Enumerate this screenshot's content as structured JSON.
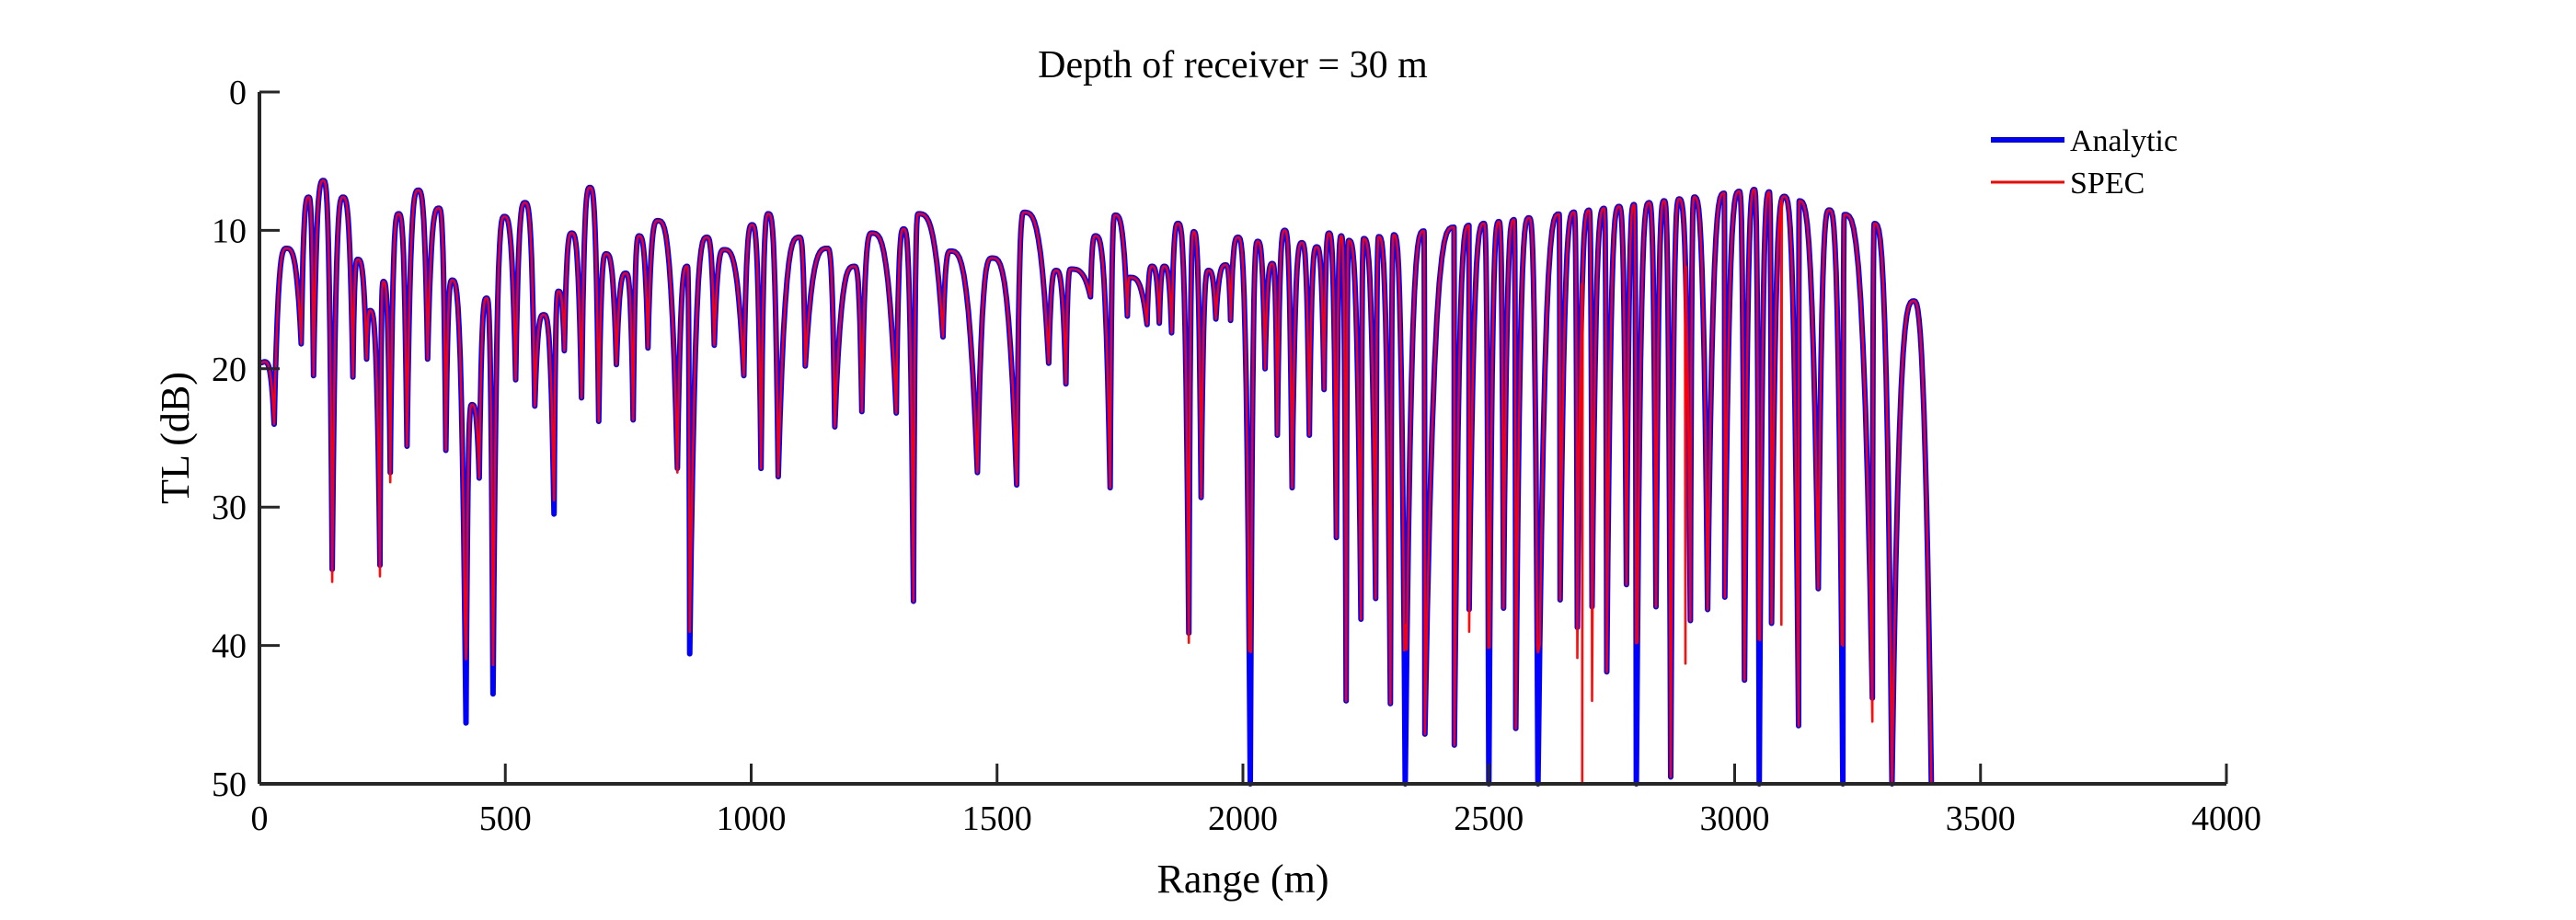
{
  "chart_data": {
    "type": "line",
    "title": "Depth of receiver = 30 m",
    "xlabel": "Range (m)",
    "ylabel": "TL (dB)",
    "xlim": [
      0,
      4000
    ],
    "ylim": [
      0,
      50
    ],
    "y_reversed": true,
    "grid": false,
    "legend_position": "top-right",
    "x_ticks": [
      "0",
      "500",
      "1000",
      "1500",
      "2000",
      "2500",
      "3000",
      "3500",
      "4000"
    ],
    "y_ticks": [
      "0",
      "10",
      "20",
      "30",
      "40",
      "50"
    ],
    "cutoff_range": 3400,
    "series": [
      {
        "name": "Analytic",
        "color": "#0000ff",
        "peaks": [
          [
            10,
            19.5
          ],
          [
            55,
            11.3
          ],
          [
            100,
            7.6
          ],
          [
            130,
            6.4
          ],
          [
            170,
            7.6
          ],
          [
            200,
            12.1
          ],
          [
            225,
            15.8
          ],
          [
            252,
            13.7
          ],
          [
            283,
            8.8
          ],
          [
            323,
            7.1
          ],
          [
            365,
            8.4
          ],
          [
            392,
            13.6
          ],
          [
            432,
            22.6
          ],
          [
            462,
            14.9
          ],
          [
            498,
            9.0
          ],
          [
            540,
            8.0
          ],
          [
            578,
            16.1
          ],
          [
            608,
            14.4
          ],
          [
            635,
            10.2
          ],
          [
            672,
            6.9
          ],
          [
            705,
            11.7
          ],
          [
            745,
            13.1
          ],
          [
            772,
            10.4
          ],
          [
            810,
            9.3
          ],
          [
            840,
            16.1
          ],
          [
            870,
            12.6
          ],
          [
            910,
            10.5
          ],
          [
            945,
            11.4
          ],
          [
            965,
            12.1
          ],
          [
            1002,
            9.6
          ],
          [
            1035,
            8.8
          ],
          [
            1065,
            10.6
          ],
          [
            1098,
            10.5
          ],
          [
            1130,
            13.7
          ],
          [
            1155,
            11.3
          ],
          [
            1185,
            15.9
          ],
          [
            1210,
            12.6
          ],
          [
            1245,
            10.2
          ],
          [
            1280,
            12.3
          ],
          [
            1310,
            9.9
          ],
          [
            1340,
            8.8
          ],
          [
            1370,
            12.0
          ],
          [
            1405,
            11.5
          ],
          [
            1430,
            12.8
          ],
          [
            1455,
            15.7
          ],
          [
            1490,
            12.0
          ],
          [
            1525,
            13.0
          ],
          [
            1555,
            8.7
          ],
          [
            1590,
            10.9
          ],
          [
            1620,
            12.9
          ],
          [
            1650,
            12.8
          ],
          [
            1680,
            14.5
          ],
          [
            1700,
            10.4
          ],
          [
            1740,
            8.9
          ],
          [
            1770,
            13.4
          ],
          [
            1795,
            14.1
          ],
          [
            1815,
            12.6
          ],
          [
            1840,
            12.6
          ],
          [
            1868,
            9.5
          ],
          [
            1900,
            10.1
          ],
          [
            1930,
            12.9
          ],
          [
            1965,
            12.5
          ],
          [
            1990,
            10.5
          ],
          [
            2030,
            10.8
          ],
          [
            2060,
            12.4
          ],
          [
            2085,
            10.0
          ],
          [
            2120,
            10.9
          ],
          [
            2150,
            11.2
          ],
          [
            2175,
            10.2
          ],
          [
            2200,
            10.4
          ]
        ],
        "uniform_arches": {
          "start": 2200,
          "end": 3330,
          "count": 37,
          "peak_from": 10.8,
          "peak_mid_range": 3050,
          "peak_mid": 7.0,
          "peak_to": 10.0
        },
        "tail_peak": [
          3365,
          15.1
        ],
        "nulls": [
          [
            30,
            24.0
          ],
          [
            85,
            18.2
          ],
          [
            110,
            20.5
          ],
          [
            148,
            34.5
          ],
          [
            190,
            20.6
          ],
          [
            218,
            19.3
          ],
          [
            245,
            34.2
          ],
          [
            266,
            27.5
          ],
          [
            300,
            25.6
          ],
          [
            342,
            19.3
          ],
          [
            379,
            25.9
          ],
          [
            420,
            45.6
          ],
          [
            447,
            27.9
          ],
          [
            475,
            43.5
          ],
          [
            521,
            20.8
          ],
          [
            560,
            22.7
          ],
          [
            599,
            30.5
          ],
          [
            620,
            18.7
          ],
          [
            655,
            22.1
          ],
          [
            690,
            23.8
          ],
          [
            726,
            19.7
          ],
          [
            760,
            23.7
          ],
          [
            790,
            18.5
          ],
          [
            850,
            27.2
          ],
          [
            875,
            40.6
          ],
          [
            893,
            22.0
          ],
          [
            925,
            18.3
          ],
          [
            985,
            20.5
          ],
          [
            1020,
            27.2
          ],
          [
            1055,
            27.8
          ],
          [
            1110,
            19.8
          ],
          [
            1170,
            24.2
          ],
          [
            1225,
            23.1
          ],
          [
            1295,
            23.2
          ],
          [
            1330,
            36.8
          ],
          [
            1390,
            17.7
          ],
          [
            1460,
            27.5
          ],
          [
            1540,
            28.4
          ],
          [
            1605,
            19.6
          ],
          [
            1640,
            21.1
          ],
          [
            1690,
            14.8
          ],
          [
            1730,
            28.6
          ],
          [
            1765,
            16.2
          ],
          [
            1805,
            16.8
          ],
          [
            1830,
            16.7
          ],
          [
            1855,
            17.4
          ],
          [
            1890,
            39.1
          ],
          [
            1915,
            29.3
          ],
          [
            1945,
            16.4
          ],
          [
            1975,
            16.5
          ],
          [
            2015,
            50.0
          ],
          [
            2045,
            20.0
          ],
          [
            2070,
            24.8
          ],
          [
            2100,
            28.6
          ],
          [
            2135,
            24.8
          ],
          [
            2165,
            21.5
          ],
          [
            2190,
            32.2
          ],
          [
            2210,
            44.0
          ],
          [
            2240,
            38.1
          ],
          [
            2270,
            36.6
          ],
          [
            2300,
            44.2
          ],
          [
            2330,
            50.0
          ],
          [
            2370,
            46.4
          ],
          [
            2395,
            39.0
          ],
          [
            2430,
            47.2
          ],
          [
            2460,
            37.4
          ],
          [
            2500,
            50.0
          ],
          [
            2530,
            37.3
          ],
          [
            2555,
            46.0
          ],
          [
            2590,
            43.4
          ],
          [
            2600,
            50.0
          ],
          [
            2645,
            36.7
          ],
          [
            2680,
            38.7
          ],
          [
            2710,
            37.2
          ],
          [
            2740,
            41.9
          ],
          [
            2780,
            35.6
          ],
          [
            2800,
            50.0
          ],
          [
            2840,
            37.2
          ],
          [
            2870,
            49.5
          ],
          [
            2910,
            38.2
          ],
          [
            2945,
            37.4
          ],
          [
            2980,
            36.5
          ],
          [
            3020,
            42.5
          ],
          [
            3050,
            50.0
          ],
          [
            3075,
            38.4
          ],
          [
            3130,
            45.8
          ],
          [
            3170,
            35.9
          ],
          [
            3220,
            50.0
          ],
          [
            3280,
            43.8
          ],
          [
            3320,
            50.0
          ]
        ]
      },
      {
        "name": "SPEC",
        "color": "#ff0000",
        "differs_from_analytic": [
          [
            148,
            35.4
          ],
          [
            245,
            35.0
          ],
          [
            266,
            28.2
          ],
          [
            420,
            41.0
          ],
          [
            475,
            41.4
          ],
          [
            599,
            29.5
          ],
          [
            850,
            27.5
          ],
          [
            875,
            39.0
          ],
          [
            1890,
            39.8
          ],
          [
            2015,
            37.0
          ],
          [
            2330,
            38.5
          ],
          [
            2400,
            39.0
          ],
          [
            2460,
            39.0
          ],
          [
            2500,
            36.0
          ],
          [
            2600,
            40.5
          ],
          [
            2680,
            40.9
          ],
          [
            2690,
            50.0
          ],
          [
            2710,
            44.0
          ],
          [
            2800,
            37.0
          ],
          [
            2900,
            41.3
          ],
          [
            3050,
            35.0
          ],
          [
            3095,
            38.5
          ],
          [
            3220,
            38.0
          ],
          [
            3280,
            45.5
          ],
          [
            3320,
            50.0
          ]
        ]
      }
    ]
  }
}
